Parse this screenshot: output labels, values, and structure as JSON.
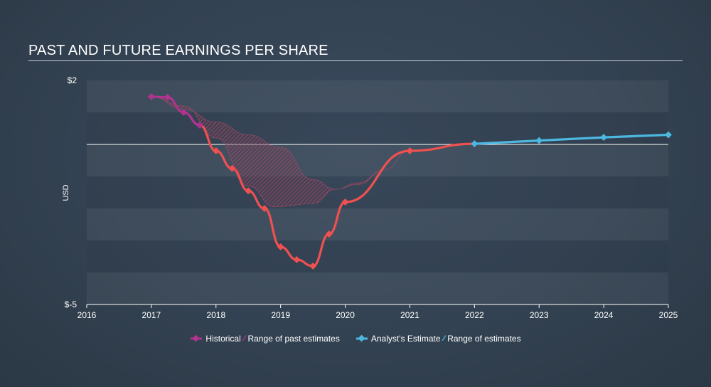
{
  "chart_data": {
    "type": "line",
    "title": "PAST AND FUTURE EARNINGS PER SHARE",
    "ylabel": "USD",
    "xlim": [
      2016,
      2025
    ],
    "ylim": [
      -5,
      2
    ],
    "y_tick_labels": [
      {
        "value": 2,
        "label": "$2"
      },
      {
        "value": -5,
        "label": "$-5"
      }
    ],
    "x_ticks": [
      2016,
      2017,
      2018,
      2019,
      2020,
      2021,
      2022,
      2023,
      2024,
      2025
    ],
    "zero_line": 0,
    "colors": {
      "historical_purple": "#b0338f",
      "historical_red": "#f05050",
      "estimate": "#4cb8e0",
      "past_range_fill": "#a0405a"
    },
    "series": [
      {
        "name": "Historical",
        "points": [
          {
            "x": 2017.0,
            "y": 1.49,
            "color": "purple"
          },
          {
            "x": 2017.25,
            "y": 1.47,
            "color": "purple"
          },
          {
            "x": 2017.5,
            "y": 1.0,
            "color": "purple"
          },
          {
            "x": 2017.75,
            "y": 0.6,
            "color": "purple"
          },
          {
            "x": 2018.0,
            "y": -0.2,
            "color": "red"
          },
          {
            "x": 2018.25,
            "y": -0.75,
            "color": "red"
          },
          {
            "x": 2018.5,
            "y": -1.45,
            "color": "red"
          },
          {
            "x": 2018.75,
            "y": -2.0,
            "color": "red"
          },
          {
            "x": 2019.0,
            "y": -3.2,
            "color": "red"
          },
          {
            "x": 2019.25,
            "y": -3.6,
            "color": "red"
          },
          {
            "x": 2019.5,
            "y": -3.8,
            "color": "red"
          },
          {
            "x": 2019.75,
            "y": -2.8,
            "color": "red"
          },
          {
            "x": 2020.0,
            "y": -1.8,
            "color": "red"
          },
          {
            "x": 2021.0,
            "y": -0.2,
            "color": "red"
          },
          {
            "x": 2022.0,
            "y": 0.02,
            "color": "red"
          }
        ]
      },
      {
        "name": "Analyst's Estimate",
        "points": [
          {
            "x": 2022.0,
            "y": 0.02
          },
          {
            "x": 2023.0,
            "y": 0.12
          },
          {
            "x": 2024.0,
            "y": 0.22
          },
          {
            "x": 2025.0,
            "y": 0.3
          }
        ]
      }
    ],
    "range_of_past_estimates": {
      "upper": [
        {
          "x": 2017.0,
          "y": 1.49
        },
        {
          "x": 2017.5,
          "y": 1.1
        },
        {
          "x": 2018.0,
          "y": 0.7
        },
        {
          "x": 2018.5,
          "y": 0.3
        },
        {
          "x": 2019.0,
          "y": -0.1
        },
        {
          "x": 2019.5,
          "y": -1.1
        },
        {
          "x": 2019.85,
          "y": -1.4
        },
        {
          "x": 2020.2,
          "y": -1.25
        },
        {
          "x": 2020.6,
          "y": -0.8
        },
        {
          "x": 2021.0,
          "y": -0.2
        }
      ],
      "lower": [
        {
          "x": 2017.0,
          "y": 1.49
        },
        {
          "x": 2017.5,
          "y": 1.2
        },
        {
          "x": 2018.0,
          "y": 0.2
        },
        {
          "x": 2018.5,
          "y": -1.3
        },
        {
          "x": 2018.9,
          "y": -1.95
        },
        {
          "x": 2019.5,
          "y": -1.85
        },
        {
          "x": 2019.85,
          "y": -1.4
        },
        {
          "x": 2020.2,
          "y": -1.2
        },
        {
          "x": 2020.6,
          "y": -0.8
        },
        {
          "x": 2021.0,
          "y": -0.2
        }
      ]
    }
  },
  "legend": {
    "historical": "Historical",
    "range_past": "Range of past estimates",
    "analyst_estimate": "Analyst's Estimate",
    "range_estimates": "Range of estimates"
  }
}
